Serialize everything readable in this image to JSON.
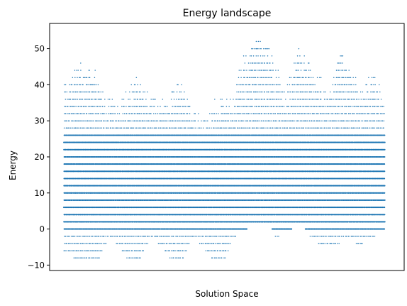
{
  "chart_data": {
    "type": "scatter",
    "title": "Energy landscape",
    "xlabel": "Solution Space",
    "ylabel": "Energy",
    "ylim": [
      -11.5,
      57
    ],
    "yticks": [
      -10,
      0,
      10,
      20,
      30,
      40,
      50
    ],
    "xticks": [],
    "grid": false,
    "marker_color": "#1f77b4",
    "energy_step": 2,
    "x_extent": [
      0,
      1
    ],
    "energy_min": -8,
    "energy_max": 54,
    "notes_visible": "Dense horizontal bands of points at every even energy level from about 0 to 26; sparser bands above with peaks near 46, 44, 42, 42, 54, 50, 50 and 44; negative energies reaching -8 in separate clusters across the solution space."
  }
}
